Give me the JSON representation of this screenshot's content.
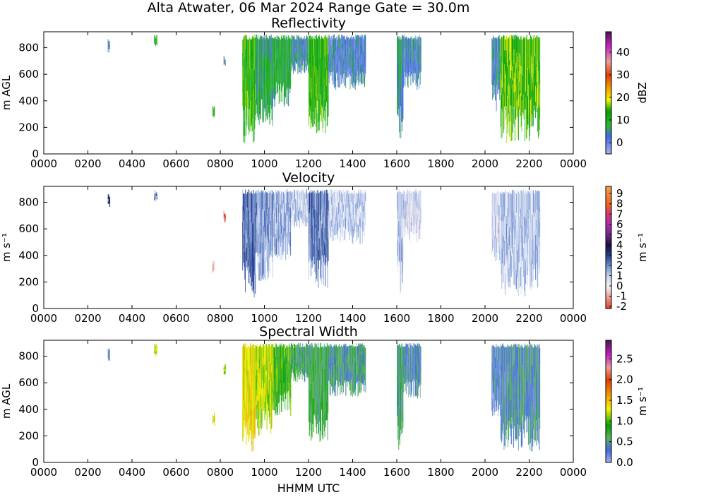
{
  "figure": {
    "title": "Alta Atwater, 06 Mar 2024 Range Gate = 30.0m",
    "xlabel": "HHMM UTC"
  },
  "chart_data": [
    {
      "type": "heatmap",
      "title": "Reflectivity",
      "ylabel": "m AGL",
      "x_ticks": [
        "0000",
        "0200",
        "0400",
        "0600",
        "0800",
        "1000",
        "1200",
        "1400",
        "1600",
        "1800",
        "2000",
        "2200",
        "0000"
      ],
      "y_ticks": [
        "0",
        "200",
        "400",
        "600",
        "800"
      ],
      "xlim": [
        0,
        24
      ],
      "ylim": [
        0,
        920
      ],
      "colorbar": {
        "label": "dBZ",
        "ticks": [
          "0",
          "10",
          "20",
          "30",
          "40"
        ],
        "tick_values": [
          0,
          10,
          20,
          30,
          40
        ],
        "range": [
          -5,
          49
        ],
        "stops": [
          {
            "v": -5,
            "c": "#aab4f0"
          },
          {
            "v": 3,
            "c": "#4169e1"
          },
          {
            "v": 8,
            "c": "#2db82d"
          },
          {
            "v": 14,
            "c": "#00a000"
          },
          {
            "v": 19,
            "c": "#f5f500"
          },
          {
            "v": 24,
            "c": "#f5a300"
          },
          {
            "v": 30,
            "c": "#e63c00"
          },
          {
            "v": 36,
            "c": "#e6a0a0"
          },
          {
            "v": 43,
            "c": "#c81ec8"
          },
          {
            "v": 49,
            "c": "#501850"
          }
        ]
      },
      "echoes": [
        {
          "t0": 2.9,
          "t1": 3.0,
          "z0": 760,
          "z1": 870,
          "value": 2
        },
        {
          "t0": 5.0,
          "t1": 5.15,
          "z0": 800,
          "z1": 900,
          "value": 12
        },
        {
          "t0": 7.65,
          "t1": 7.75,
          "z0": 270,
          "z1": 380,
          "value": 10
        },
        {
          "t0": 8.15,
          "t1": 8.25,
          "z0": 650,
          "z1": 740,
          "value": 3
        },
        {
          "t0": 9.0,
          "t1": 9.6,
          "z0": 80,
          "z1": 900,
          "value": 13
        },
        {
          "t0": 9.6,
          "t1": 10.4,
          "z0": 200,
          "z1": 900,
          "value": 8
        },
        {
          "t0": 10.4,
          "t1": 11.2,
          "z0": 350,
          "z1": 900,
          "value": 9
        },
        {
          "t0": 11.2,
          "t1": 12.0,
          "z0": 600,
          "z1": 900,
          "value": 4
        },
        {
          "t0": 12.0,
          "t1": 12.9,
          "z0": 150,
          "z1": 900,
          "value": 13
        },
        {
          "t0": 12.9,
          "t1": 14.6,
          "z0": 480,
          "z1": 900,
          "value": 3
        },
        {
          "t0": 16.0,
          "t1": 16.3,
          "z0": 80,
          "z1": 900,
          "value": 6
        },
        {
          "t0": 16.3,
          "t1": 17.1,
          "z0": 480,
          "z1": 900,
          "value": 3
        },
        {
          "t0": 20.3,
          "t1": 20.7,
          "z0": 320,
          "z1": 900,
          "value": 3
        },
        {
          "t0": 20.7,
          "t1": 22.5,
          "z0": 80,
          "z1": 900,
          "value": 15
        }
      ]
    },
    {
      "type": "heatmap",
      "title": "Velocity",
      "ylabel": "m s⁻¹",
      "x_ticks": [
        "0000",
        "0200",
        "0400",
        "0600",
        "0800",
        "1000",
        "1200",
        "1400",
        "1600",
        "1800",
        "2000",
        "2200",
        "0000"
      ],
      "y_ticks": [
        "0",
        "200",
        "400",
        "600",
        "800"
      ],
      "xlim": [
        0,
        24
      ],
      "ylim": [
        0,
        920
      ],
      "colorbar": {
        "label": "m s⁻¹",
        "ticks": [
          "-2",
          "-1",
          "0",
          "1",
          "2",
          "3",
          "4",
          "5",
          "6",
          "7",
          "8",
          "9"
        ],
        "tick_values": [
          -2,
          -1,
          0,
          1,
          2,
          3,
          4,
          5,
          6,
          7,
          8,
          9
        ],
        "range": [
          -2.2,
          9.7
        ],
        "stops": [
          {
            "v": -2.2,
            "c": "#e04020"
          },
          {
            "v": -1,
            "c": "#f0a0a0"
          },
          {
            "v": 0,
            "c": "#f4f4fa"
          },
          {
            "v": 1,
            "c": "#c6d2ee"
          },
          {
            "v": 2,
            "c": "#6f8fd0"
          },
          {
            "v": 3,
            "c": "#24408e"
          },
          {
            "v": 4,
            "c": "#1a1040"
          },
          {
            "v": 5,
            "c": "#6a2a8a"
          },
          {
            "v": 6,
            "c": "#b02ab0"
          },
          {
            "v": 7,
            "c": "#d03878"
          },
          {
            "v": 8,
            "c": "#f06420"
          },
          {
            "v": 9.7,
            "c": "#f0a050"
          }
        ]
      },
      "echoes": [
        {
          "t0": 2.9,
          "t1": 3.0,
          "z0": 760,
          "z1": 870,
          "value": 3
        },
        {
          "t0": 5.0,
          "t1": 5.15,
          "z0": 800,
          "z1": 900,
          "value": 2
        },
        {
          "t0": 7.65,
          "t1": 7.75,
          "z0": 270,
          "z1": 380,
          "value": -0.8
        },
        {
          "t0": 8.15,
          "t1": 8.25,
          "z0": 650,
          "z1": 740,
          "value": -1.8
        },
        {
          "t0": 9.0,
          "t1": 9.6,
          "z0": 80,
          "z1": 900,
          "value": 2.4
        },
        {
          "t0": 9.6,
          "t1": 10.4,
          "z0": 200,
          "z1": 900,
          "value": 1.8
        },
        {
          "t0": 10.4,
          "t1": 11.2,
          "z0": 350,
          "z1": 900,
          "value": 1.4
        },
        {
          "t0": 11.2,
          "t1": 12.0,
          "z0": 600,
          "z1": 900,
          "value": 1.0
        },
        {
          "t0": 12.0,
          "t1": 12.9,
          "z0": 150,
          "z1": 900,
          "value": 2.2
        },
        {
          "t0": 12.9,
          "t1": 14.6,
          "z0": 480,
          "z1": 900,
          "value": 1.0
        },
        {
          "t0": 16.0,
          "t1": 16.3,
          "z0": 80,
          "z1": 900,
          "value": 1.2
        },
        {
          "t0": 16.3,
          "t1": 17.1,
          "z0": 480,
          "z1": 900,
          "value": 0.6
        },
        {
          "t0": 20.3,
          "t1": 20.7,
          "z0": 320,
          "z1": 900,
          "value": 0.8
        },
        {
          "t0": 20.7,
          "t1": 22.5,
          "z0": 80,
          "z1": 900,
          "value": 1.1
        }
      ]
    },
    {
      "type": "heatmap",
      "title": "Spectral Width",
      "ylabel": "m AGL",
      "x_ticks": [
        "0000",
        "0200",
        "0400",
        "0600",
        "0800",
        "1000",
        "1200",
        "1400",
        "1600",
        "1800",
        "2000",
        "2200",
        "0000"
      ],
      "y_ticks": [
        "0",
        "200",
        "400",
        "600",
        "800"
      ],
      "xlim": [
        0,
        24
      ],
      "ylim": [
        0,
        920
      ],
      "colorbar": {
        "label": "m s⁻¹",
        "ticks": [
          "0.0",
          "0.5",
          "1.0",
          "1.5",
          "2.0",
          "2.5"
        ],
        "tick_values": [
          0,
          0.5,
          1.0,
          1.5,
          2.0,
          2.5
        ],
        "range": [
          0,
          2.95
        ],
        "stops": [
          {
            "v": 0,
            "c": "#aab4f0"
          },
          {
            "v": 0.3,
            "c": "#4169e1"
          },
          {
            "v": 0.6,
            "c": "#5ab45a"
          },
          {
            "v": 0.9,
            "c": "#00a000"
          },
          {
            "v": 1.3,
            "c": "#f5f500"
          },
          {
            "v": 1.6,
            "c": "#f5a300"
          },
          {
            "v": 2.0,
            "c": "#e63c00"
          },
          {
            "v": 2.3,
            "c": "#e6a0a0"
          },
          {
            "v": 2.6,
            "c": "#c81ec8"
          },
          {
            "v": 2.95,
            "c": "#501850"
          }
        ]
      },
      "echoes": [
        {
          "t0": 2.9,
          "t1": 3.0,
          "z0": 760,
          "z1": 870,
          "value": 0.3
        },
        {
          "t0": 5.0,
          "t1": 5.15,
          "z0": 800,
          "z1": 900,
          "value": 1.2
        },
        {
          "t0": 7.65,
          "t1": 7.75,
          "z0": 270,
          "z1": 380,
          "value": 1.3
        },
        {
          "t0": 8.15,
          "t1": 8.25,
          "z0": 650,
          "z1": 740,
          "value": 1.0
        },
        {
          "t0": 9.0,
          "t1": 9.6,
          "z0": 80,
          "z1": 900,
          "value": 1.4
        },
        {
          "t0": 9.6,
          "t1": 10.4,
          "z0": 200,
          "z1": 900,
          "value": 1.2
        },
        {
          "t0": 10.4,
          "t1": 11.2,
          "z0": 350,
          "z1": 900,
          "value": 0.9
        },
        {
          "t0": 11.2,
          "t1": 12.0,
          "z0": 600,
          "z1": 900,
          "value": 0.6
        },
        {
          "t0": 12.0,
          "t1": 12.9,
          "z0": 150,
          "z1": 900,
          "value": 0.7
        },
        {
          "t0": 12.9,
          "t1": 14.6,
          "z0": 480,
          "z1": 900,
          "value": 0.5
        },
        {
          "t0": 16.0,
          "t1": 16.3,
          "z0": 80,
          "z1": 900,
          "value": 0.6
        },
        {
          "t0": 16.3,
          "t1": 17.1,
          "z0": 480,
          "z1": 900,
          "value": 0.4
        },
        {
          "t0": 20.3,
          "t1": 20.7,
          "z0": 320,
          "z1": 900,
          "value": 0.3
        },
        {
          "t0": 20.7,
          "t1": 22.5,
          "z0": 80,
          "z1": 900,
          "value": 0.4
        }
      ]
    }
  ]
}
